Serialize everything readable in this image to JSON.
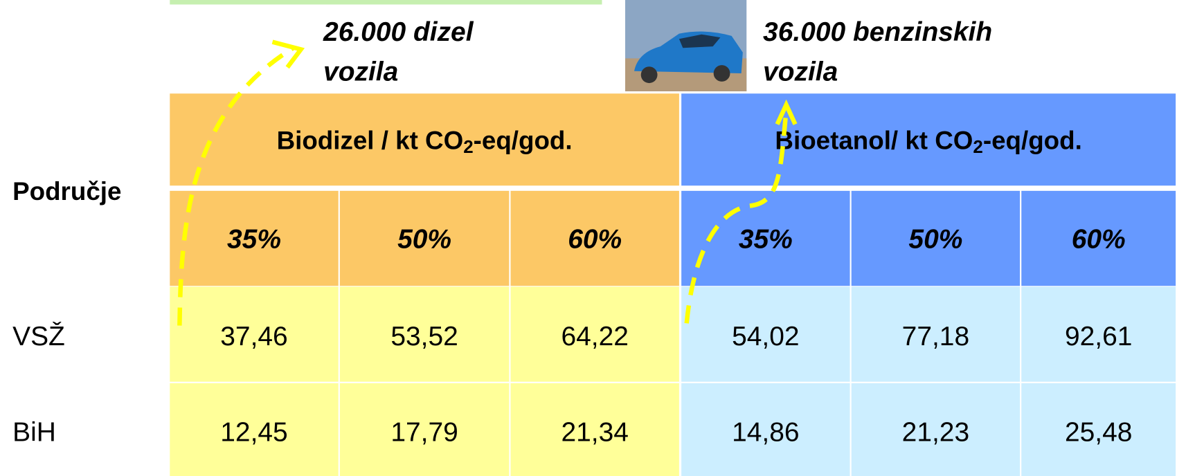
{
  "notes": [
    {
      "lines": [
        "26.000 dizel",
        "vozila"
      ]
    },
    {
      "lines": [
        "36.000 benzinskih",
        "vozila"
      ]
    }
  ],
  "table": {
    "corner": "Područje",
    "groups": [
      {
        "pre": "Biodizel / kt CO",
        "sub": "2",
        "post": "-eq/god."
      },
      {
        "pre": "Bioetanol/ kt CO",
        "sub": "2",
        "post": "-eq/god."
      }
    ],
    "subheaders": [
      "35%",
      "50%",
      "60%",
      "35%",
      "50%",
      "60%"
    ],
    "rows": [
      {
        "label": "VSŽ",
        "cells": [
          "37,46",
          "53,52",
          "64,22",
          "54,02",
          "77,18",
          "92,61"
        ]
      },
      {
        "label": "BiH",
        "cells": [
          "12,45",
          "17,79",
          "21,34",
          "14,86",
          "21,23",
          "25,48"
        ]
      }
    ]
  }
}
